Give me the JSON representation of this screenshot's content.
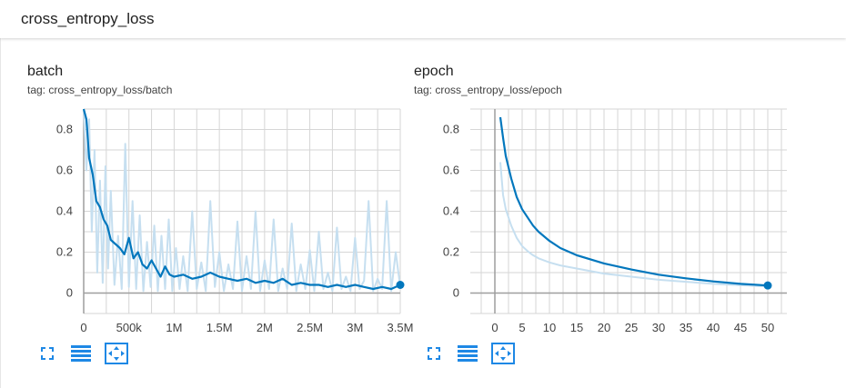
{
  "header": {
    "title": "cross_entropy_loss"
  },
  "colors": {
    "line": "#0277bd",
    "raw": "#c6dff0",
    "grid": "#d6d6d6",
    "axis": "#9e9e9e",
    "icon": "#1e88e5"
  },
  "charts": [
    {
      "title": "batch",
      "tag": "tag: cross_entropy_loss/batch"
    },
    {
      "title": "epoch",
      "tag": "tag: cross_entropy_loss/epoch"
    }
  ],
  "toolbar_icons": [
    "fullscreen-icon",
    "data-table-icon",
    "fit-domain-icon"
  ],
  "chart_data": [
    {
      "type": "line",
      "title": "batch",
      "subtitle": "tag: cross_entropy_loss/batch",
      "xlim": [
        0,
        3500000
      ],
      "ylim": [
        -0.1,
        0.9
      ],
      "x_ticks": [
        0,
        500000,
        1000000,
        1500000,
        2000000,
        2500000,
        3000000,
        3500000
      ],
      "x_tick_labels": [
        "0",
        "500k",
        "1M",
        "1.5M",
        "2M",
        "2.5M",
        "3M",
        "3.5M"
      ],
      "y_ticks": [
        0,
        0.2,
        0.4,
        0.6,
        0.8
      ],
      "y_tick_labels": [
        "0",
        "0.2",
        "0.4",
        "0.6",
        "0.8"
      ],
      "grid": true,
      "series": [
        {
          "role": "smoothed",
          "x": [
            0,
            30000,
            60000,
            100000,
            140000,
            180000,
            220000,
            260000,
            300000,
            350000,
            400000,
            450000,
            500000,
            550000,
            600000,
            650000,
            700000,
            750000,
            800000,
            850000,
            900000,
            950000,
            1000000,
            1100000,
            1200000,
            1300000,
            1400000,
            1500000,
            1600000,
            1700000,
            1800000,
            1900000,
            2000000,
            2100000,
            2200000,
            2300000,
            2400000,
            2500000,
            2600000,
            2700000,
            2800000,
            2900000,
            3000000,
            3100000,
            3200000,
            3300000,
            3400000,
            3500000
          ],
          "values": [
            0.92,
            0.85,
            0.66,
            0.58,
            0.45,
            0.42,
            0.36,
            0.33,
            0.26,
            0.24,
            0.22,
            0.19,
            0.27,
            0.17,
            0.2,
            0.14,
            0.12,
            0.16,
            0.12,
            0.08,
            0.13,
            0.09,
            0.08,
            0.09,
            0.07,
            0.08,
            0.1,
            0.08,
            0.07,
            0.06,
            0.07,
            0.05,
            0.06,
            0.05,
            0.07,
            0.04,
            0.05,
            0.04,
            0.04,
            0.03,
            0.04,
            0.03,
            0.04,
            0.03,
            0.02,
            0.03,
            0.02,
            0.04
          ]
        },
        {
          "role": "raw",
          "x": [
            0,
            30000,
            60000,
            90000,
            120000,
            150000,
            180000,
            210000,
            240000,
            270000,
            300000,
            340000,
            380000,
            420000,
            460000,
            500000,
            540000,
            580000,
            620000,
            660000,
            700000,
            740000,
            780000,
            820000,
            860000,
            900000,
            940000,
            980000,
            1020000,
            1060000,
            1100000,
            1150000,
            1200000,
            1250000,
            1300000,
            1350000,
            1400000,
            1450000,
            1500000,
            1550000,
            1600000,
            1650000,
            1700000,
            1750000,
            1800000,
            1850000,
            1900000,
            1950000,
            2000000,
            2050000,
            2100000,
            2150000,
            2200000,
            2250000,
            2300000,
            2350000,
            2400000,
            2450000,
            2500000,
            2550000,
            2600000,
            2650000,
            2700000,
            2750000,
            2800000,
            2850000,
            2900000,
            2950000,
            3000000,
            3050000,
            3100000,
            3150000,
            3200000,
            3250000,
            3300000,
            3350000,
            3400000,
            3450000,
            3500000
          ],
          "values": [
            0.92,
            0.6,
            0.85,
            0.3,
            0.7,
            0.1,
            0.55,
            0.05,
            0.62,
            0.12,
            0.5,
            0.04,
            0.28,
            0.02,
            0.73,
            0.03,
            0.45,
            0.02,
            0.38,
            0.01,
            0.25,
            0.03,
            0.33,
            0.01,
            0.28,
            0.02,
            0.36,
            0.01,
            0.22,
            0.02,
            0.18,
            0.01,
            0.4,
            0.02,
            0.15,
            0.01,
            0.45,
            0.03,
            0.2,
            0.01,
            0.14,
            0.02,
            0.35,
            0.01,
            0.18,
            0.02,
            0.4,
            0.01,
            0.16,
            0.02,
            0.36,
            0.01,
            0.12,
            0.02,
            0.34,
            0.01,
            0.14,
            0.02,
            0.21,
            0.01,
            0.3,
            0.02,
            0.1,
            0.01,
            0.32,
            0.02,
            0.08,
            0.01,
            0.27,
            0.02,
            0.06,
            0.45,
            0.01,
            0.07,
            0.02,
            0.45,
            0.01,
            0.2,
            0.03
          ]
        }
      ]
    },
    {
      "type": "line",
      "title": "epoch",
      "subtitle": "tag: cross_entropy_loss/epoch",
      "xlim": [
        -4.5,
        53.5
      ],
      "ylim": [
        -0.1,
        0.9
      ],
      "x_ticks": [
        0,
        5,
        10,
        15,
        20,
        25,
        30,
        35,
        40,
        45,
        50
      ],
      "x_tick_labels": [
        "0",
        "5",
        "10",
        "15",
        "20",
        "25",
        "30",
        "35",
        "40",
        "45",
        "50"
      ],
      "y_ticks": [
        0,
        0.2,
        0.4,
        0.6,
        0.8
      ],
      "y_tick_labels": [
        "0",
        "0.2",
        "0.4",
        "0.6",
        "0.8"
      ],
      "grid": true,
      "series": [
        {
          "role": "smoothed",
          "x": [
            1,
            1.5,
            2,
            3,
            4,
            5,
            6,
            7,
            8,
            10,
            12,
            15,
            20,
            25,
            30,
            35,
            40,
            45,
            50
          ],
          "values": [
            0.86,
            0.76,
            0.67,
            0.56,
            0.47,
            0.41,
            0.37,
            0.33,
            0.3,
            0.255,
            0.22,
            0.185,
            0.145,
            0.115,
            0.09,
            0.072,
            0.057,
            0.045,
            0.037
          ]
        },
        {
          "role": "raw",
          "x": [
            1,
            1.5,
            2,
            3,
            4,
            5,
            6,
            7,
            8,
            10,
            12,
            15,
            20,
            25,
            30,
            35,
            40,
            45,
            50
          ],
          "values": [
            0.64,
            0.48,
            0.41,
            0.33,
            0.27,
            0.23,
            0.205,
            0.185,
            0.17,
            0.15,
            0.135,
            0.12,
            0.095,
            0.08,
            0.065,
            0.055,
            0.045,
            0.038,
            0.032
          ]
        }
      ]
    }
  ]
}
